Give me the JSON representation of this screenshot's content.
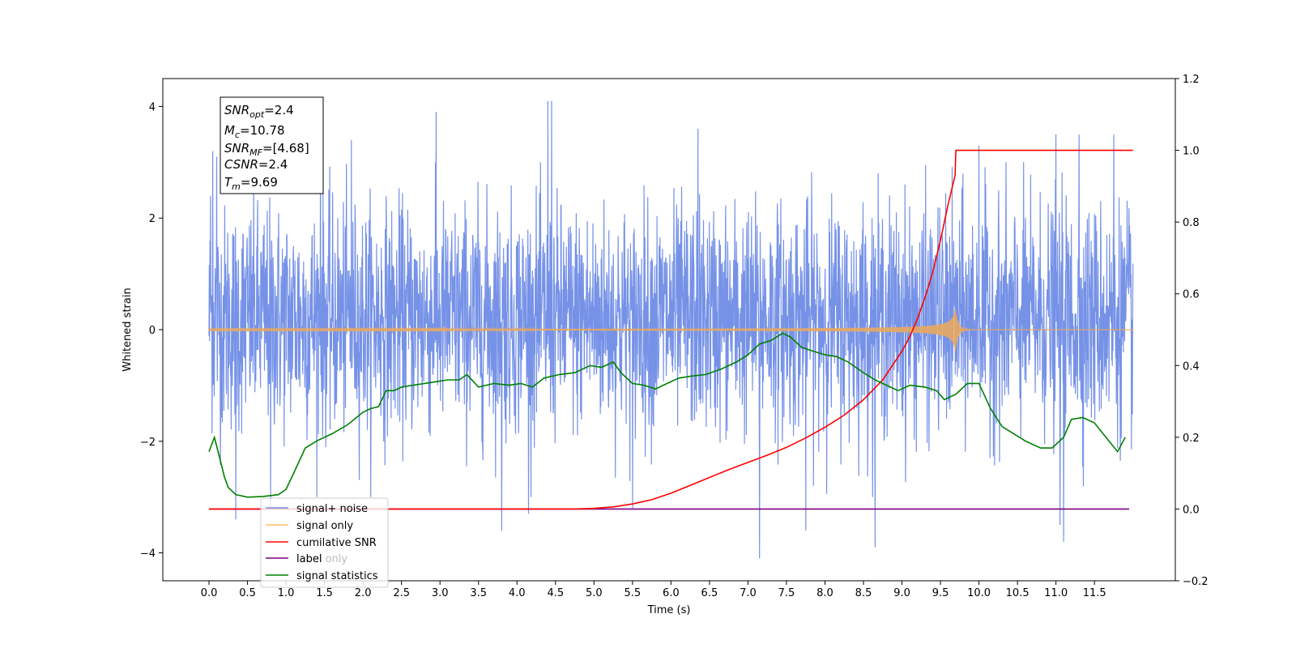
{
  "chart_data": {
    "type": "line",
    "xlabel": "Time (s)",
    "ylabel": "Whitened strain",
    "xlim": [
      -0.6,
      12.55
    ],
    "ylim": [
      -4.5,
      4.5
    ],
    "y2lim": [
      -0.2,
      1.2
    ],
    "x_ticks": [
      "0.0",
      "0.5",
      "1.0",
      "1.5",
      "2.0",
      "2.5",
      "3.0",
      "3.5",
      "4.0",
      "4.5",
      "5.0",
      "5.5",
      "6.0",
      "6.5",
      "7.0",
      "7.5",
      "8.0",
      "8.5",
      "9.0",
      "9.5",
      "10.0",
      "10.5",
      "11.0",
      "11.5"
    ],
    "y_ticks": [
      "4",
      "2",
      "0",
      "−2",
      "−4"
    ],
    "y2_ticks": [
      "1.2",
      "1.0",
      "0.8",
      "0.6",
      "0.4",
      "0.2",
      "0.0",
      "−0.2"
    ],
    "legend_position": "lower left",
    "legend": [
      {
        "label": "signal+ noise",
        "color": "#6f8ce6"
      },
      {
        "label": "signal only",
        "color": "#ffbf60"
      },
      {
        "label": "cumilative SNR",
        "color": "#ff0000"
      },
      {
        "label": "label",
        "color": "#800080"
      },
      {
        "label": "label only",
        "color": "#000000"
      },
      {
        "label": "signal statistics",
        "color": "#008000"
      }
    ],
    "annotation": {
      "snr_opt": {
        "base": "SNR",
        "sub": "opt",
        "value": "=2.4"
      },
      "mc": {
        "base": "M",
        "sub": "c",
        "value": "=10.78"
      },
      "snr_mf": {
        "base": "SNR",
        "sub": "MF",
        "value": "=[4.68]"
      },
      "csnr": {
        "base": "CSNR",
        "sub": "",
        "value": "=2.4"
      },
      "tm": {
        "base": "T",
        "sub": "m",
        "value": "=9.69"
      }
    },
    "series": [
      {
        "name": "signal+ noise",
        "axis": "left",
        "color": "#6f8ce6",
        "description_free": true,
        "x_range": [
          0.0,
          12.0
        ],
        "envelope_typical": [
          -1.8,
          2.2
        ],
        "peaks": [
          {
            "x": 0.02,
            "y": 2.4
          },
          {
            "x": 0.05,
            "y": 3.2
          },
          {
            "x": 0.1,
            "y": 3.1
          },
          {
            "x": 0.35,
            "y": -3.4
          },
          {
            "x": 0.8,
            "y": -3.2
          },
          {
            "x": 1.45,
            "y": 3.6
          },
          {
            "x": 1.85,
            "y": 3.4
          },
          {
            "x": 2.95,
            "y": 3.9
          },
          {
            "x": 3.8,
            "y": -3.6
          },
          {
            "x": 4.15,
            "y": -3.3
          },
          {
            "x": 4.4,
            "y": 4.1
          },
          {
            "x": 4.45,
            "y": 4.1
          },
          {
            "x": 5.5,
            "y": -3.2
          },
          {
            "x": 6.35,
            "y": 3.6
          },
          {
            "x": 7.15,
            "y": -4.1
          },
          {
            "x": 7.75,
            "y": -3.6
          },
          {
            "x": 8.65,
            "y": -3.9
          },
          {
            "x": 10.0,
            "y": 3.3
          },
          {
            "x": 11.0,
            "y": 3.5
          },
          {
            "x": 11.05,
            "y": -3.5
          },
          {
            "x": 11.1,
            "y": -3.8
          },
          {
            "x": 11.3,
            "y": 3.5
          },
          {
            "x": 11.75,
            "y": 3.5
          }
        ]
      },
      {
        "name": "signal only",
        "axis": "left",
        "color": "#e8a860",
        "x_range": [
          0.0,
          12.0
        ],
        "merger_time": 9.69,
        "peak_amplitude": 0.4
      },
      {
        "name": "cumilative SNR",
        "axis": "right",
        "color": "#ff0000",
        "x": [
          0.0,
          4.0,
          4.75,
          5.0,
          5.25,
          5.5,
          5.75,
          6.0,
          6.25,
          6.5,
          6.75,
          7.0,
          7.25,
          7.5,
          7.75,
          8.0,
          8.25,
          8.5,
          8.75,
          9.0,
          9.1,
          9.2,
          9.3,
          9.4,
          9.5,
          9.6,
          9.69,
          9.7,
          12.0
        ],
        "y": [
          0.0,
          0.0,
          0.0,
          0.002,
          0.006,
          0.014,
          0.026,
          0.044,
          0.066,
          0.088,
          0.11,
          0.13,
          0.15,
          0.172,
          0.198,
          0.228,
          0.262,
          0.305,
          0.36,
          0.44,
          0.48,
          0.53,
          0.59,
          0.66,
          0.75,
          0.85,
          0.93,
          1.0,
          1.0
        ]
      },
      {
        "name": "label",
        "axis": "right",
        "color": "#800080",
        "x": [
          0.0,
          11.95
        ],
        "y": [
          0.0,
          0.0
        ]
      },
      {
        "name": "signal statistics",
        "axis": "right",
        "color": "#008000",
        "x": [
          0.0,
          0.07,
          0.13,
          0.2,
          0.25,
          0.35,
          0.5,
          0.7,
          0.9,
          1.0,
          1.1,
          1.25,
          1.4,
          1.6,
          1.8,
          2.0,
          2.1,
          2.2,
          2.3,
          2.4,
          2.5,
          2.65,
          2.8,
          2.95,
          3.1,
          3.25,
          3.35,
          3.5,
          3.7,
          3.9,
          4.05,
          4.2,
          4.35,
          4.55,
          4.75,
          4.95,
          5.1,
          5.25,
          5.35,
          5.5,
          5.65,
          5.8,
          5.95,
          6.1,
          6.25,
          6.45,
          6.65,
          6.85,
          7.0,
          7.15,
          7.3,
          7.45,
          7.55,
          7.7,
          7.85,
          8.0,
          8.15,
          8.3,
          8.5,
          8.65,
          8.8,
          8.95,
          9.1,
          9.3,
          9.45,
          9.55,
          9.7,
          9.85,
          10.0,
          10.15,
          10.3,
          10.45,
          10.6,
          10.8,
          10.95,
          11.1,
          11.2,
          11.35,
          11.5,
          11.65,
          11.8,
          11.9
        ],
        "y": [
          0.16,
          0.2,
          0.15,
          0.09,
          0.06,
          0.04,
          0.033,
          0.035,
          0.04,
          0.055,
          0.1,
          0.17,
          0.19,
          0.21,
          0.235,
          0.27,
          0.28,
          0.285,
          0.33,
          0.33,
          0.34,
          0.345,
          0.35,
          0.355,
          0.36,
          0.36,
          0.375,
          0.34,
          0.35,
          0.345,
          0.35,
          0.34,
          0.365,
          0.375,
          0.38,
          0.4,
          0.395,
          0.41,
          0.38,
          0.35,
          0.345,
          0.335,
          0.35,
          0.365,
          0.37,
          0.375,
          0.39,
          0.41,
          0.43,
          0.46,
          0.47,
          0.49,
          0.48,
          0.45,
          0.44,
          0.43,
          0.425,
          0.41,
          0.38,
          0.36,
          0.345,
          0.33,
          0.345,
          0.34,
          0.33,
          0.305,
          0.32,
          0.35,
          0.35,
          0.28,
          0.23,
          0.21,
          0.19,
          0.17,
          0.17,
          0.2,
          0.25,
          0.255,
          0.24,
          0.2,
          0.16,
          0.2
        ]
      }
    ]
  }
}
